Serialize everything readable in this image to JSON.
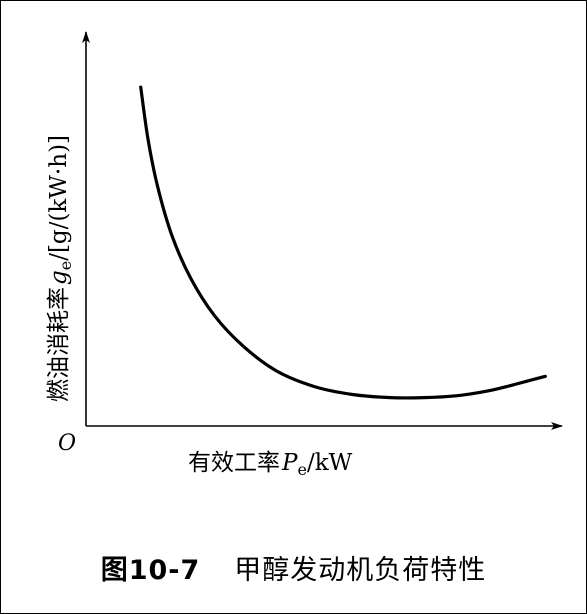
{
  "chart_data": {
    "type": "line",
    "origin_label": "O",
    "xlabel_prefix": "有效工率",
    "xlabel_symbol": "P",
    "xlabel_subscript": "e",
    "xlabel_unit": "/kW",
    "ylabel_prefix": "燃油消耗率",
    "ylabel_symbol": "g",
    "ylabel_subscript": "e",
    "ylabel_unit": "/[g/(kW·h)]",
    "grid": false,
    "ticks": false,
    "note": "no numeric ticks printed; values are relative (0-100 scale)",
    "xlim": [
      0,
      100
    ],
    "ylim": [
      0,
      100
    ],
    "series": [
      {
        "x": [
          11.5,
          13,
          15,
          18,
          22,
          27,
          33,
          40,
          48,
          56,
          64,
          71,
          78,
          84,
          89,
          93,
          96.5
        ],
        "y": [
          86,
          73,
          61,
          48.5,
          37.5,
          28,
          20.3,
          14,
          10,
          8,
          7.2,
          7.2,
          7.7,
          8.8,
          10.2,
          11.5,
          12.6
        ]
      }
    ]
  },
  "caption": {
    "figure_number": "图10-7",
    "title": "甲醇发动机负荷特性"
  }
}
